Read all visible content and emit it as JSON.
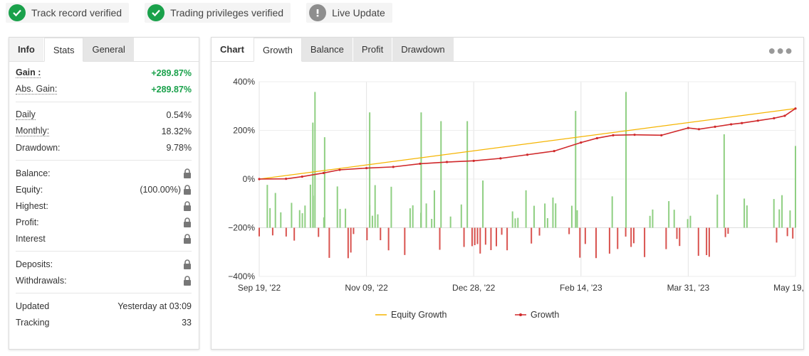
{
  "badges": [
    {
      "label": "Track record verified",
      "icon": "check-circle-icon"
    },
    {
      "label": "Trading privileges verified",
      "icon": "check-circle-icon"
    },
    {
      "label": "Live Update",
      "icon": "exclamation-circle-icon"
    }
  ],
  "left_tabs": {
    "info": "Info",
    "stats": "Stats",
    "general": "General"
  },
  "stats": {
    "gain_label": "Gain :",
    "gain_value": "+289.87%",
    "abs_gain_label": "Abs. Gain:",
    "abs_gain_value": "+289.87%",
    "daily_label": "Daily",
    "daily_value": "0.54%",
    "monthly_label": "Monthly:",
    "monthly_value": "18.32%",
    "drawdown_label": "Drawdown:",
    "drawdown_value": "9.78%",
    "balance_label": "Balance:",
    "equity_label": "Equity:",
    "equity_value": "(100.00%)",
    "highest_label": "Highest:",
    "profit_label": "Profit:",
    "interest_label": "Interest",
    "deposits_label": "Deposits:",
    "withdrawals_label": "Withdrawals:",
    "updated_label": "Updated",
    "updated_value": "Yesterday at 03:09",
    "tracking_label": "Tracking",
    "tracking_value": "33"
  },
  "chart_tabs": {
    "chart": "Chart",
    "growth": "Growth",
    "balance": "Balance",
    "profit": "Profit",
    "drawdown": "Drawdown"
  },
  "colors": {
    "accent_green": "#1aa14b",
    "equity_line": "#f5b400",
    "growth_line": "#d0292b",
    "bar_up": "#8fcf82",
    "bar_down": "#d9534f"
  },
  "chart_data": {
    "type": "line",
    "x_ticks": [
      "Sep 19, '22",
      "Nov 09, '22",
      "Dec 28, '22",
      "Feb 14, '23",
      "Mar 31, '23",
      "May 19, '23"
    ],
    "y_ticks": [
      "400%",
      "200%",
      "0%",
      "−200%",
      "−400%"
    ],
    "ylim": [
      -400,
      400
    ],
    "legend_placement": "bottom-center",
    "grid": true,
    "series": [
      {
        "name": "Equity Growth",
        "points": [
          [
            0,
            0
          ],
          [
            1,
            289.87
          ]
        ]
      },
      {
        "name": "Growth",
        "points": [
          [
            0,
            0
          ],
          [
            0.05,
            1
          ],
          [
            0.08,
            10
          ],
          [
            0.12,
            25
          ],
          [
            0.15,
            38
          ],
          [
            0.2,
            45
          ],
          [
            0.25,
            50
          ],
          [
            0.3,
            63
          ],
          [
            0.35,
            70
          ],
          [
            0.4,
            75
          ],
          [
            0.45,
            85
          ],
          [
            0.5,
            100
          ],
          [
            0.55,
            115
          ],
          [
            0.6,
            150
          ],
          [
            0.63,
            168
          ],
          [
            0.66,
            180
          ],
          [
            0.7,
            182
          ],
          [
            0.75,
            180
          ],
          [
            0.8,
            210
          ],
          [
            0.82,
            205
          ],
          [
            0.85,
            215
          ],
          [
            0.88,
            225
          ],
          [
            0.9,
            230
          ],
          [
            0.93,
            240
          ],
          [
            0.96,
            250
          ],
          [
            0.98,
            260
          ],
          [
            1.0,
            289.87
          ]
        ]
      }
    ]
  }
}
